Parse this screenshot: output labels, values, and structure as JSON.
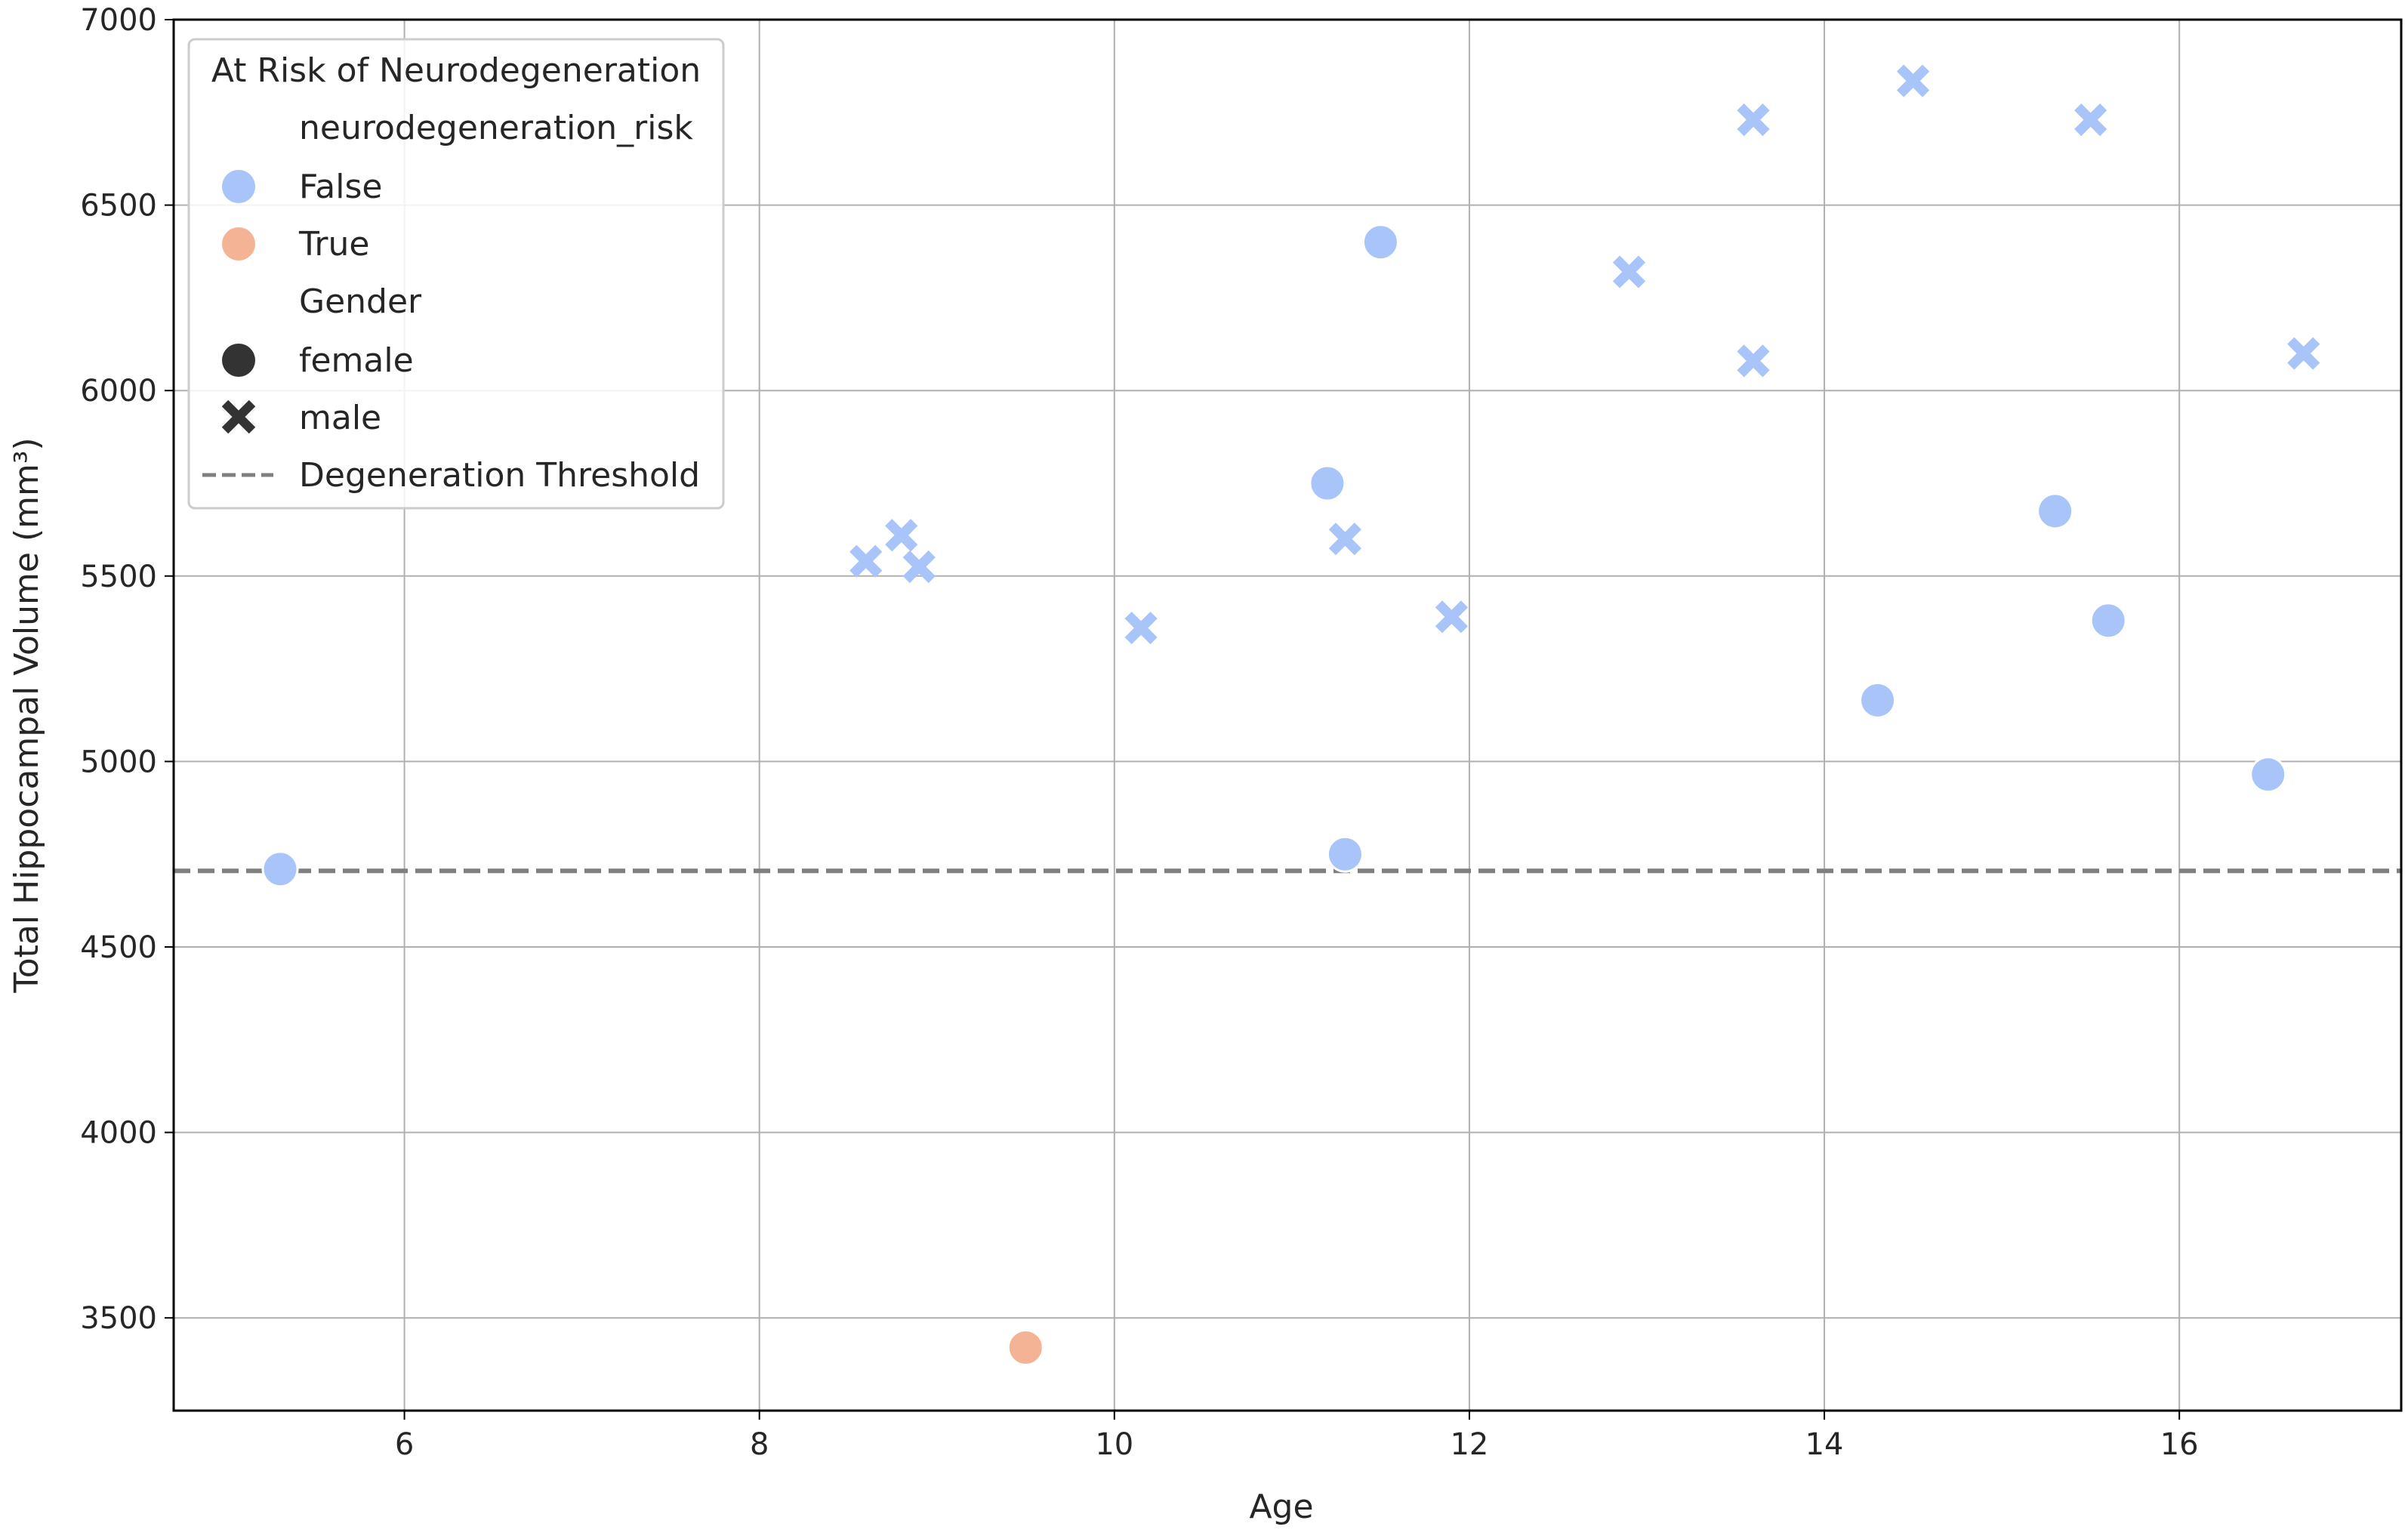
{
  "chart_data": {
    "type": "scatter",
    "xlabel": "Age",
    "ylabel": "Total Hippocampal Volume (mm³)",
    "xlim": [
      4.7,
      17.25
    ],
    "ylim": [
      3250,
      7000
    ],
    "xticks": [
      "6",
      "8",
      "10",
      "12",
      "14",
      "16"
    ],
    "yticks": [
      "3500",
      "4000",
      "4500",
      "5000",
      "5500",
      "6000",
      "6500",
      "7000"
    ],
    "grid": true,
    "threshold": {
      "label": "Degeneration Threshold",
      "value": 4705,
      "style": "dashed",
      "color": "#7f7f7f"
    },
    "legend": {
      "placement": "top-left",
      "title": "At Risk of Neurodegeneration",
      "hue_header": "neurodegeneration_risk",
      "hue_items": [
        {
          "label": "False",
          "color": "#a8c4f8"
        },
        {
          "label": "True",
          "color": "#f5b395"
        }
      ],
      "style_header": "Gender",
      "style_items": [
        {
          "label": "female",
          "marker": "circle"
        },
        {
          "label": "male",
          "marker": "x"
        }
      ],
      "threshold_label": "Degeneration Threshold"
    },
    "points": [
      {
        "x": 5.3,
        "y": 4710,
        "gender": "female",
        "risk": "False"
      },
      {
        "x": 9.5,
        "y": 3420,
        "gender": "female",
        "risk": "True"
      },
      {
        "x": 11.2,
        "y": 5750,
        "gender": "female",
        "risk": "False"
      },
      {
        "x": 11.3,
        "y": 4750,
        "gender": "female",
        "risk": "False"
      },
      {
        "x": 11.5,
        "y": 6400,
        "gender": "female",
        "risk": "False"
      },
      {
        "x": 14.3,
        "y": 5165,
        "gender": "female",
        "risk": "False"
      },
      {
        "x": 15.3,
        "y": 5675,
        "gender": "female",
        "risk": "False"
      },
      {
        "x": 15.6,
        "y": 5380,
        "gender": "female",
        "risk": "False"
      },
      {
        "x": 16.5,
        "y": 4965,
        "gender": "female",
        "risk": "False"
      },
      {
        "x": 8.6,
        "y": 5540,
        "gender": "male",
        "risk": "False"
      },
      {
        "x": 8.8,
        "y": 5610,
        "gender": "male",
        "risk": "False"
      },
      {
        "x": 8.9,
        "y": 5525,
        "gender": "male",
        "risk": "False"
      },
      {
        "x": 10.15,
        "y": 5360,
        "gender": "male",
        "risk": "False"
      },
      {
        "x": 11.3,
        "y": 5600,
        "gender": "male",
        "risk": "False"
      },
      {
        "x": 11.9,
        "y": 5390,
        "gender": "male",
        "risk": "False"
      },
      {
        "x": 12.9,
        "y": 6320,
        "gender": "male",
        "risk": "False"
      },
      {
        "x": 13.6,
        "y": 6730,
        "gender": "male",
        "risk": "False"
      },
      {
        "x": 13.6,
        "y": 6080,
        "gender": "male",
        "risk": "False"
      },
      {
        "x": 14.5,
        "y": 6835,
        "gender": "male",
        "risk": "False"
      },
      {
        "x": 15.5,
        "y": 6730,
        "gender": "male",
        "risk": "False"
      },
      {
        "x": 16.7,
        "y": 6100,
        "gender": "male",
        "risk": "False"
      }
    ]
  }
}
